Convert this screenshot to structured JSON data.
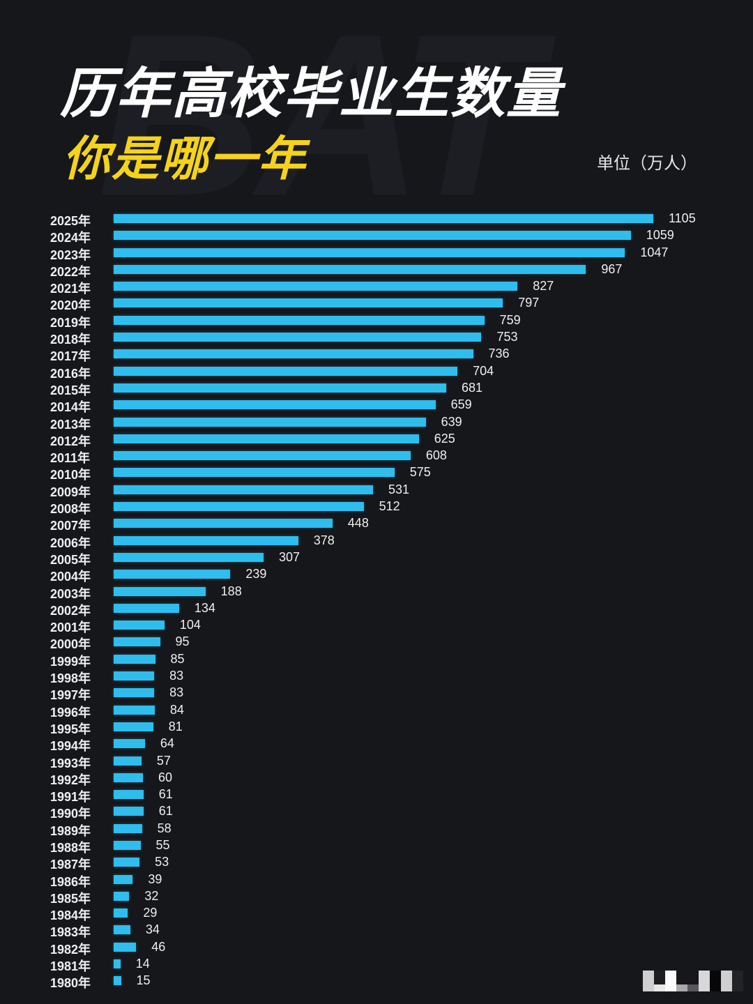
{
  "background_text": "BAT",
  "header": {
    "title": "历年高校毕业生数量",
    "subtitle": "你是哪一年",
    "unit": "单位（万人）"
  },
  "colors": {
    "background": "#16171b",
    "bar": "#2fbdee",
    "title": "#ffffff",
    "subtitle": "#f5d31c",
    "text": "#f0f0f0"
  },
  "chart_data": {
    "type": "bar",
    "orientation": "horizontal",
    "title": "历年高校毕业生数量",
    "subtitle": "你是哪一年",
    "xlabel": "",
    "ylabel": "",
    "unit": "万人",
    "grid": false,
    "legend": null,
    "categories": [
      "2025年",
      "2024年",
      "2023年",
      "2022年",
      "2021年",
      "2020年",
      "2019年",
      "2018年",
      "2017年",
      "2016年",
      "2015年",
      "2014年",
      "2013年",
      "2012年",
      "2011年",
      "2010年",
      "2009年",
      "2008年",
      "2007年",
      "2006年",
      "2005年",
      "2004年",
      "2003年",
      "2002年",
      "2001年",
      "2000年",
      "1999年",
      "1998年",
      "1997年",
      "1996年",
      "1995年",
      "1994年",
      "1993年",
      "1992年",
      "1991年",
      "1990年",
      "1989年",
      "1988年",
      "1987年",
      "1986年",
      "1985年",
      "1984年",
      "1983年",
      "1982年",
      "1981年",
      "1980年"
    ],
    "values": [
      1105,
      1059,
      1047,
      967,
      827,
      797,
      759,
      753,
      736,
      704,
      681,
      659,
      639,
      625,
      608,
      575,
      531,
      512,
      448,
      378,
      307,
      239,
      188,
      134,
      104,
      95,
      85,
      83,
      83,
      84,
      81,
      64,
      57,
      60,
      61,
      61,
      58,
      55,
      53,
      39,
      32,
      29,
      34,
      46,
      14,
      15
    ],
    "xlim": [
      0,
      1105
    ]
  }
}
